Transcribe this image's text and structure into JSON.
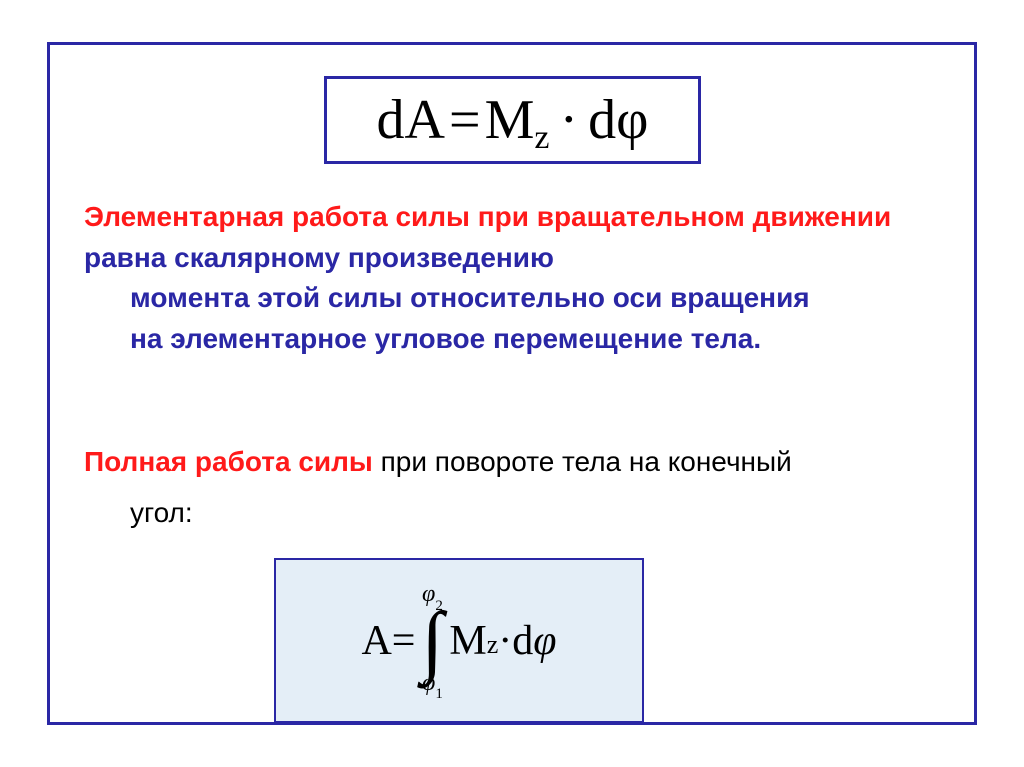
{
  "frame": {
    "border_color": "#2a27a5",
    "border_width": 3
  },
  "formula1": {
    "text_dA": "dA",
    "text_eq": "=",
    "text_M": "M",
    "text_z": "z",
    "text_dot": "·",
    "text_dphi": "dφ",
    "border_color": "#2a27a5",
    "background": "#ffffff",
    "font_size_main": 56,
    "font_size_sub": 34,
    "font_family": "Times New Roman"
  },
  "paragraph1": {
    "red_part": "Элементарная работа силы при вращательном движении",
    "blue_line1_cont": " равна скалярному произведению",
    "blue_line2": "момента этой силы относительно  оси вращения",
    "blue_line3": "на элементарное угловое перемещение тела.",
    "color_red": "#ff1a1a",
    "color_blue": "#2a27a5",
    "font_size": 28,
    "font_weight": "bold"
  },
  "paragraph2": {
    "red_part": "Полная работа силы",
    "black_part": " при повороте тела на конечный",
    "line2": "угол:",
    "color_red": "#ff1a1a",
    "color_black": "#000000",
    "font_size": 28
  },
  "formula2": {
    "text_A": "A",
    "text_eq": " = ",
    "int_upper_phi": "φ",
    "int_upper_sub": "2",
    "int_symbol": "∫",
    "int_lower_phi": "φ",
    "int_lower_sub": "1",
    "text_M": "M",
    "text_z": "z",
    "text_dot": " · ",
    "text_d": "d",
    "text_phi": "φ",
    "border_color": "#2a27a5",
    "background": "#e4eef7",
    "font_size_main": 42,
    "font_size_sub": 26,
    "font_family": "Times New Roman"
  }
}
